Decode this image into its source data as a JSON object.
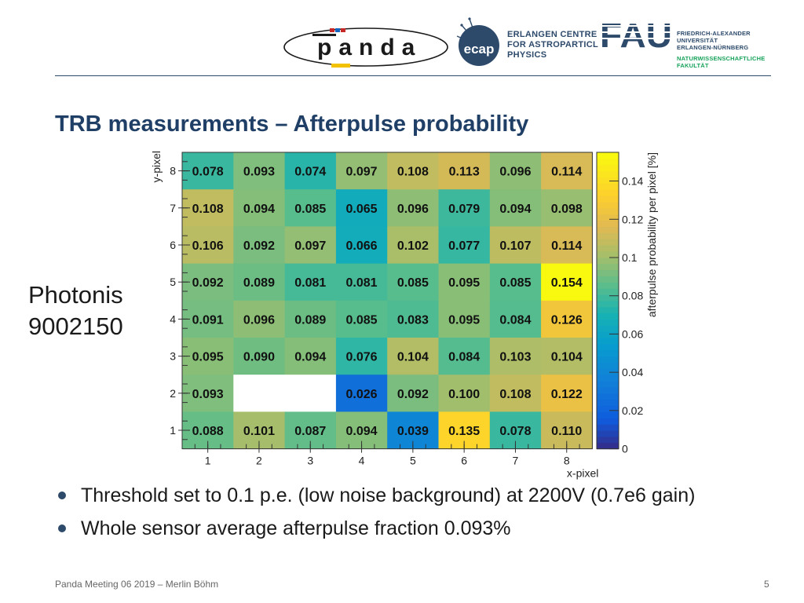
{
  "header": {
    "ecap_lines": [
      "ERLANGEN CENTRE",
      "FOR ASTROPARTICLE",
      "PHYSICS"
    ],
    "ecap_logo_text": "ecap",
    "fau_logo_text": "FAU",
    "fau_name_lines": [
      "FRIEDRICH-ALEXANDER",
      "UNIVERSITÄT",
      "ERLANGEN-NÜRNBERG"
    ],
    "fau_faculty_lines": [
      "NATURWISSENSCHAFTLICHE",
      "FAKULTÄT"
    ],
    "panda_logo_text": "panda",
    "colors": {
      "navy": "#2d4a6b",
      "green": "#18a35b"
    }
  },
  "title": "TRB measurements – Afterpulse probability",
  "side_label": {
    "line1": "Photonis",
    "line2": "9002150"
  },
  "bullets": [
    "Threshold set to 0.1 p.e. (low noise background) at 2200V (0.7e6 gain)",
    "Whole sensor average afterpulse fraction 0.093%"
  ],
  "footer": {
    "text": "Panda Meeting 06 2019 – Merlin Böhm",
    "page": "5"
  },
  "chart_data": {
    "type": "heatmap",
    "xlabel": "x-pixel",
    "ylabel": "y-pixel",
    "zlabel": "afterpulse probability per pixel  [%]",
    "x_categories": [
      "1",
      "2",
      "3",
      "4",
      "5",
      "6",
      "7",
      "8"
    ],
    "y_categories": [
      "1",
      "2",
      "3",
      "4",
      "5",
      "6",
      "7",
      "8"
    ],
    "zlim": [
      0,
      0.155
    ],
    "colorbar_ticks": [
      "0",
      "0.02",
      "0.04",
      "0.06",
      "0.08",
      "0.1",
      "0.12",
      "0.14"
    ],
    "rows_top_to_bottom": [
      {
        "y": 8,
        "values": [
          0.078,
          0.093,
          0.074,
          0.097,
          0.108,
          0.113,
          0.096,
          0.114
        ]
      },
      {
        "y": 7,
        "values": [
          0.108,
          0.094,
          0.085,
          0.065,
          0.096,
          0.079,
          0.094,
          0.098
        ]
      },
      {
        "y": 6,
        "values": [
          0.106,
          0.092,
          0.097,
          0.066,
          0.102,
          0.077,
          0.107,
          0.114
        ]
      },
      {
        "y": 5,
        "values": [
          0.092,
          0.089,
          0.081,
          0.081,
          0.085,
          0.095,
          0.085,
          0.154
        ]
      },
      {
        "y": 4,
        "values": [
          0.091,
          0.096,
          0.089,
          0.085,
          0.083,
          0.095,
          0.084,
          0.126
        ]
      },
      {
        "y": 3,
        "values": [
          0.095,
          0.09,
          0.094,
          0.076,
          0.104,
          0.084,
          0.103,
          0.104
        ]
      },
      {
        "y": 2,
        "values": [
          0.093,
          null,
          null,
          0.026,
          0.092,
          0.1,
          0.108,
          0.122
        ]
      },
      {
        "y": 1,
        "values": [
          0.088,
          0.101,
          0.087,
          0.094,
          0.039,
          0.135,
          0.078,
          0.11
        ]
      }
    ]
  }
}
